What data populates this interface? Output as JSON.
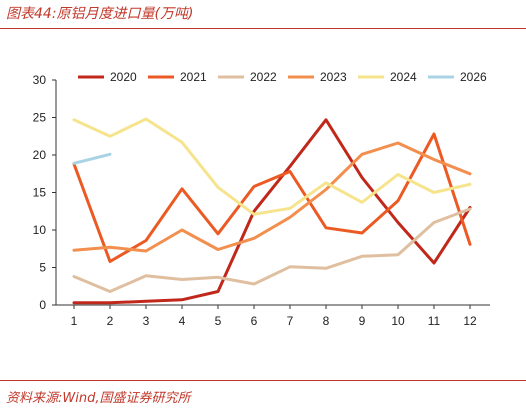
{
  "header": {
    "title": "图表44:原铝月度进口量(万吨)"
  },
  "footer": {
    "source": "资料来源:Wind,国盛证券研究所"
  },
  "chart_data": {
    "type": "line",
    "title": "图表44:原铝月度进口量(万吨)",
    "xlabel": "",
    "ylabel": "",
    "x": [
      1,
      2,
      3,
      4,
      5,
      6,
      7,
      8,
      9,
      10,
      11,
      12
    ],
    "x_ticks": [
      "1",
      "2",
      "3",
      "4",
      "5",
      "6",
      "7",
      "8",
      "9",
      "10",
      "11",
      "12"
    ],
    "ylim": [
      0,
      30
    ],
    "y_ticks": [
      "0",
      "5",
      "10",
      "15",
      "20",
      "25",
      "30"
    ],
    "grid": false,
    "legend_position": "top",
    "series": [
      {
        "name": "2020",
        "color": "#c0281b",
        "values": [
          0.3,
          0.3,
          0.5,
          0.7,
          1.8,
          12.5,
          18.5,
          24.7,
          17.0,
          11.0,
          5.6,
          13.0
        ]
      },
      {
        "name": "2021",
        "color": "#ec5a24",
        "values": [
          18.8,
          5.8,
          8.6,
          15.5,
          9.5,
          15.8,
          17.8,
          10.3,
          9.6,
          13.9,
          22.8,
          8.1
        ]
      },
      {
        "name": "2022",
        "color": "#dfbf9f",
        "values": [
          3.8,
          1.8,
          3.9,
          3.4,
          3.7,
          2.8,
          5.1,
          4.9,
          6.5,
          6.7,
          11.0,
          12.8
        ]
      },
      {
        "name": "2023",
        "color": "#f28f4e",
        "values": [
          7.3,
          7.7,
          7.2,
          10.0,
          7.4,
          8.9,
          11.7,
          15.4,
          20.1,
          21.6,
          19.4,
          17.5
        ]
      },
      {
        "name": "2024",
        "color": "#f6e48d",
        "values": [
          24.7,
          22.5,
          24.8,
          21.7,
          15.7,
          12.1,
          12.9,
          16.3,
          13.7,
          17.4,
          15.0,
          16.1
        ]
      },
      {
        "name": "2026",
        "color": "#a9d3e4",
        "values": [
          18.9,
          20.1,
          null,
          null,
          null,
          null,
          null,
          null,
          null,
          null,
          null,
          null
        ]
      }
    ]
  }
}
